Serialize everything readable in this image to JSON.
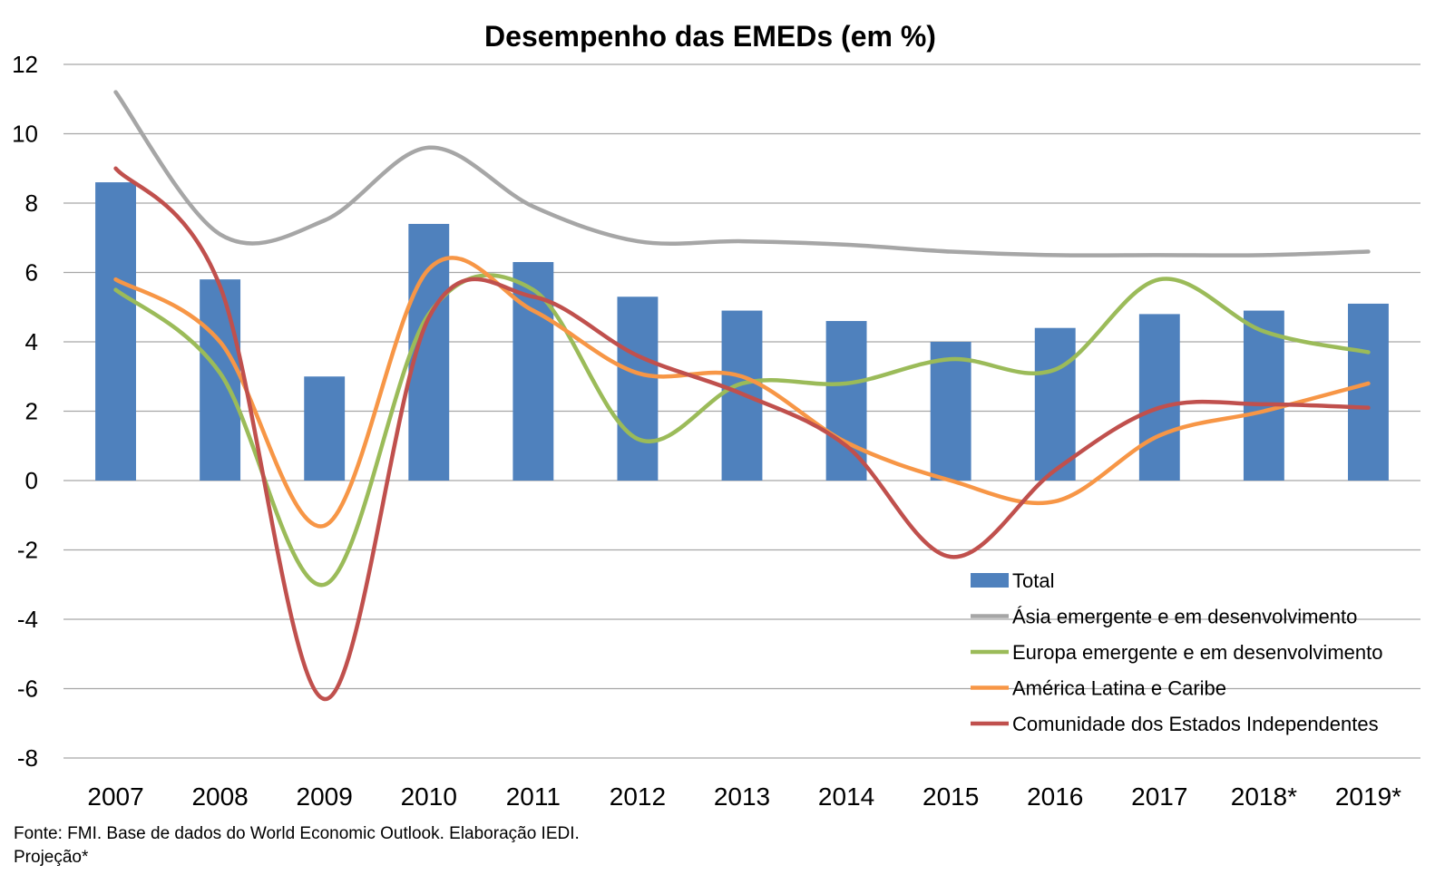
{
  "chart_data": {
    "type": "bar",
    "title": "Desempenho das EMEDs (em %)",
    "categories": [
      "2007",
      "2008",
      "2009",
      "2010",
      "2011",
      "2012",
      "2013",
      "2014",
      "2015",
      "2016",
      "2017",
      "2018*",
      "2019*"
    ],
    "ylim": [
      -8,
      12
    ],
    "yticks": [
      12,
      10,
      8,
      6,
      4,
      2,
      0,
      -2,
      -4,
      -6,
      -8
    ],
    "grid": true,
    "legend_position": "bottom-right",
    "bar_series": {
      "name": "Total",
      "color": "#4F81BD",
      "values": [
        8.6,
        5.8,
        3.0,
        7.4,
        6.3,
        5.3,
        4.9,
        4.6,
        4.0,
        4.4,
        4.8,
        4.9,
        5.1
      ]
    },
    "series": [
      {
        "name": "Ásia emergente e em desenvolvimento",
        "color": "#A6A6A6",
        "values": [
          11.2,
          7.1,
          7.5,
          9.6,
          7.9,
          6.9,
          6.9,
          6.8,
          6.6,
          6.5,
          6.5,
          6.5,
          6.6
        ]
      },
      {
        "name": "Europa emergente e em desenvolvimento",
        "color": "#9BBB59",
        "values": [
          5.5,
          3.1,
          -3.0,
          4.8,
          5.5,
          1.2,
          2.8,
          2.8,
          3.5,
          3.2,
          5.8,
          4.3,
          3.7
        ]
      },
      {
        "name": "América Latina e Caribe",
        "color": "#F79646",
        "values": [
          5.8,
          4.0,
          -1.3,
          6.1,
          4.9,
          3.1,
          3.0,
          1.1,
          0.0,
          -0.6,
          1.3,
          2.0,
          2.8
        ]
      },
      {
        "name": "Comunidade dos Estados Independentes",
        "color": "#C0504D",
        "values": [
          9.0,
          5.6,
          -6.3,
          4.7,
          5.3,
          3.6,
          2.5,
          1.0,
          -2.2,
          0.3,
          2.1,
          2.2,
          2.1
        ]
      }
    ]
  },
  "source": {
    "line1": "Fonte: FMI. Base de dados do World Economic Outlook. Elaboração IEDI.",
    "line2": "Projeção*"
  }
}
